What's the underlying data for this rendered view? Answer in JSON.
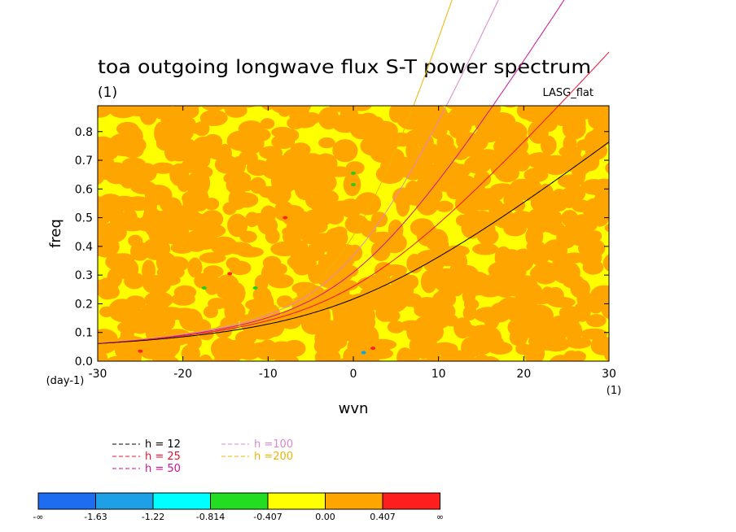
{
  "chart_data": {
    "type": "heatmap",
    "title": "toa outgoing longwave flux S-T power spectrum",
    "units_label": "(1)",
    "model_label": "LASG_flat",
    "xlabel": "wvn",
    "ylabel": "freq",
    "x_units": "(1)",
    "y_units": "(day-1)",
    "xlim": [
      -30,
      30
    ],
    "ylim": [
      0,
      0.89
    ],
    "x_ticks": [
      -30,
      -20,
      -10,
      0,
      10,
      20,
      30
    ],
    "x_tick_labels": [
      "-30",
      "-20",
      "-10",
      "0",
      "10",
      "20",
      "30"
    ],
    "y_ticks": [
      0,
      0.1,
      0.2,
      0.3,
      0.4,
      0.5,
      0.6,
      0.7,
      0.8
    ],
    "y_tick_labels": [
      "0.0",
      "0.1",
      "0.2",
      "0.3",
      "0.4",
      "0.5",
      "0.6",
      "0.7",
      "0.8"
    ],
    "field_note": "values mostly between -0.407 and 0.407 (yellow/orange), sparse extremes",
    "rare_spots": [
      {
        "x": 0.0,
        "y": 0.655,
        "color": "#22cc22"
      },
      {
        "x": 0.0,
        "y": 0.615,
        "color": "#22cc22"
      },
      {
        "x": 1.2,
        "y": 0.03,
        "color": "#00aaee"
      },
      {
        "x": 2.3,
        "y": 0.045,
        "color": "#ff2222"
      },
      {
        "x": -11.5,
        "y": 0.255,
        "color": "#22cc22"
      },
      {
        "x": -14.5,
        "y": 0.305,
        "color": "#ff2222"
      },
      {
        "x": -17.5,
        "y": 0.255,
        "color": "#22cc22"
      },
      {
        "x": -8,
        "y": 0.5,
        "color": "#ff2222"
      },
      {
        "x": -25,
        "y": 0.035,
        "color": "#ff2222"
      }
    ],
    "dispersion_curves": [
      {
        "name": "h = 12",
        "h": 12,
        "color": "#000000"
      },
      {
        "name": "h = 25",
        "h": 25,
        "color": "#ee1133"
      },
      {
        "name": "h = 50",
        "h": 50,
        "color": "#cc1199"
      },
      {
        "name": "h =100",
        "h": 100,
        "color": "#dd88cc"
      },
      {
        "name": "h =200",
        "h": 200,
        "color": "#f0b400"
      }
    ],
    "colorbar": {
      "colors": [
        "#1e6cf0",
        "#1ea0e6",
        "#00ffff",
        "#22dd22",
        "#ffff00",
        "#ffa500",
        "#ff1e1e"
      ],
      "labels": [
        "-∞",
        "-1.63",
        "-1.22",
        "-0.814",
        "-0.407",
        "0.00",
        "0.407",
        "∞"
      ]
    }
  }
}
